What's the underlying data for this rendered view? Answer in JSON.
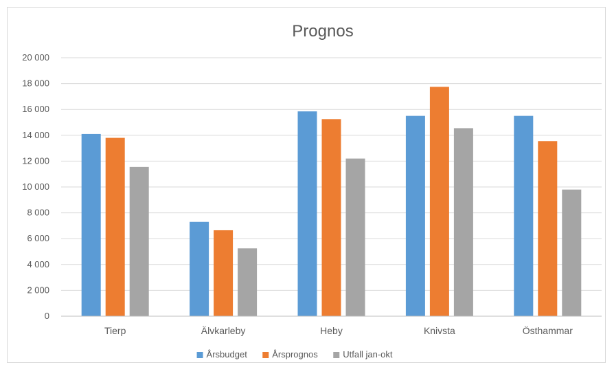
{
  "chart_data": {
    "type": "bar",
    "title": "Prognos",
    "categories": [
      "Tierp",
      "Älvkarleby",
      "Heby",
      "Knivsta",
      "Östhammar"
    ],
    "series": [
      {
        "name": "Årsbudget",
        "color": "#5b9bd5",
        "values": [
          14100,
          7300,
          15850,
          15500,
          15500
        ]
      },
      {
        "name": "Årsprognos",
        "color": "#ed7d31",
        "values": [
          13800,
          6650,
          15250,
          17750,
          13550
        ]
      },
      {
        "name": "Utfall jan-okt",
        "color": "#a5a5a5",
        "values": [
          11550,
          5250,
          12200,
          14550,
          9800
        ]
      }
    ],
    "ylim": [
      0,
      20000
    ],
    "yticks": [
      0,
      2000,
      4000,
      6000,
      8000,
      10000,
      12000,
      14000,
      16000,
      18000,
      20000
    ],
    "ytick_labels": [
      "0",
      "2 000",
      "4 000",
      "6 000",
      "8 000",
      "10 000",
      "12 000",
      "14 000",
      "16 000",
      "18 000",
      "20 000"
    ],
    "grid": true,
    "legend": "bottom"
  }
}
